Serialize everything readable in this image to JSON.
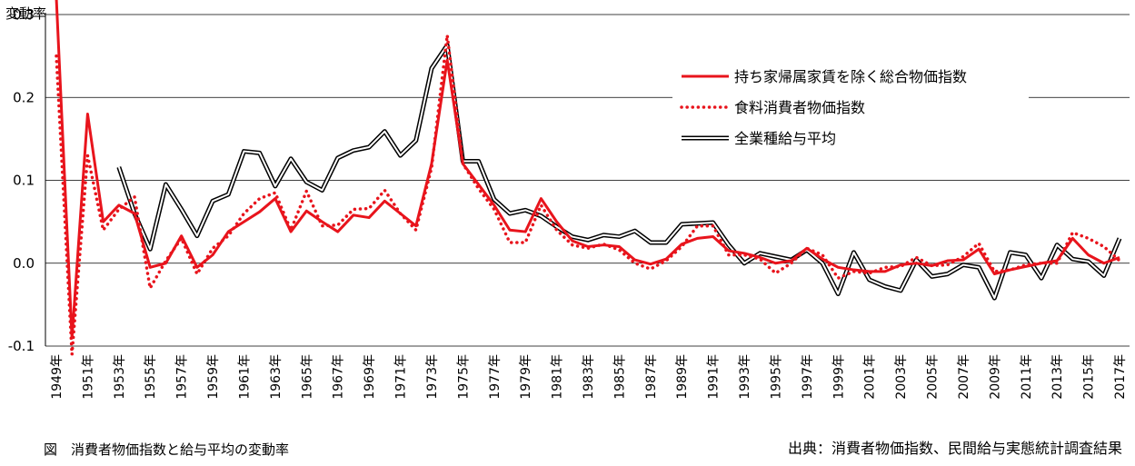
{
  "chart_data": {
    "type": "line",
    "ylabel": "変動率",
    "ylim": [
      -0.1,
      0.3
    ],
    "yticks": [
      "-0.1",
      "0.0",
      "0.1",
      "0.2",
      "0.3"
    ],
    "ytick_values": [
      -0.1,
      0.0,
      0.1,
      0.2,
      0.3
    ],
    "grid": true,
    "legend_position": "top-right",
    "x": [
      1949,
      1950,
      1951,
      1952,
      1953,
      1954,
      1955,
      1956,
      1957,
      1958,
      1959,
      1960,
      1961,
      1962,
      1963,
      1964,
      1965,
      1966,
      1967,
      1968,
      1969,
      1970,
      1971,
      1972,
      1973,
      1974,
      1975,
      1976,
      1977,
      1978,
      1979,
      1980,
      1981,
      1982,
      1983,
      1984,
      1985,
      1986,
      1987,
      1988,
      1989,
      1990,
      1991,
      1992,
      1993,
      1994,
      1995,
      1996,
      1997,
      1998,
      1999,
      2000,
      2001,
      2002,
      2003,
      2004,
      2005,
      2006,
      2007,
      2008,
      2009,
      2010,
      2011,
      2012,
      2013,
      2014,
      2015,
      2016,
      2017
    ],
    "x_tick_labels": [
      "1949年",
      "1951年",
      "1953年",
      "1955年",
      "1957年",
      "1959年",
      "1961年",
      "1963年",
      "1965年",
      "1967年",
      "1969年",
      "1971年",
      "1973年",
      "1975年",
      "1977年",
      "1979年",
      "1981年",
      "1983年",
      "1985年",
      "1987年",
      "1989年",
      "1991年",
      "1993年",
      "1995年",
      "1997年",
      "1999年",
      "2001年",
      "2003年",
      "2005年",
      "2007年",
      "2009年",
      "2011年",
      "2013年",
      "2015年",
      "2017年"
    ],
    "series": [
      {
        "name": "持ち家帰属家賃を除く総合物価指数",
        "color": "#e8141c",
        "style": "solid",
        "values": [
          0.32,
          -0.09,
          0.18,
          0.05,
          0.07,
          0.06,
          -0.005,
          0.0,
          0.033,
          -0.005,
          0.01,
          0.038,
          0.05,
          0.062,
          0.078,
          0.038,
          0.063,
          0.05,
          0.038,
          0.058,
          0.055,
          0.075,
          0.06,
          0.045,
          0.12,
          0.245,
          0.12,
          0.095,
          0.07,
          0.04,
          0.038,
          0.078,
          0.05,
          0.027,
          0.02,
          0.022,
          0.02,
          0.004,
          -0.001,
          0.005,
          0.023,
          0.03,
          0.032,
          0.015,
          0.012,
          0.007,
          0.0,
          0.003,
          0.018,
          0.005,
          -0.005,
          -0.008,
          -0.01,
          -0.01,
          -0.002,
          0.0,
          -0.003,
          0.003,
          0.004,
          0.017,
          -0.013,
          -0.008,
          -0.004,
          0.0,
          0.003,
          0.03,
          0.01,
          0.0,
          0.007
        ]
      },
      {
        "name": "食料消費者物価指数",
        "color": "#e8141c",
        "style": "dotted",
        "values": [
          0.25,
          -0.11,
          0.13,
          0.04,
          0.065,
          0.08,
          -0.03,
          0.003,
          0.03,
          -0.013,
          0.018,
          0.033,
          0.06,
          0.078,
          0.085,
          0.04,
          0.087,
          0.045,
          0.046,
          0.065,
          0.066,
          0.088,
          0.06,
          0.04,
          0.115,
          0.275,
          0.12,
          0.09,
          0.065,
          0.025,
          0.025,
          0.07,
          0.04,
          0.022,
          0.018,
          0.023,
          0.016,
          0.0,
          -0.007,
          0.003,
          0.02,
          0.045,
          0.045,
          0.01,
          0.01,
          0.005,
          -0.012,
          0.0,
          0.018,
          0.01,
          -0.018,
          -0.01,
          -0.012,
          -0.005,
          -0.004,
          0.007,
          -0.003,
          -0.002,
          0.008,
          0.024,
          -0.01,
          -0.008,
          -0.002,
          0.0,
          0.0,
          0.037,
          0.03,
          0.02,
          0.003
        ]
      },
      {
        "name": "全業種給与平均",
        "color": "#000000",
        "style": "double",
        "values": [
          null,
          null,
          null,
          null,
          0.116,
          0.06,
          0.017,
          0.095,
          0.065,
          0.033,
          0.075,
          0.083,
          0.135,
          0.133,
          0.093,
          0.126,
          0.098,
          0.088,
          0.127,
          0.136,
          0.14,
          0.159,
          0.13,
          0.148,
          0.235,
          0.263,
          0.123,
          0.123,
          0.077,
          0.06,
          0.064,
          0.057,
          0.044,
          0.032,
          0.028,
          0.034,
          0.032,
          0.039,
          0.025,
          0.025,
          0.047,
          0.048,
          0.049,
          0.022,
          0.0,
          0.012,
          0.008,
          0.004,
          0.016,
          0.0,
          -0.037,
          0.013,
          -0.02,
          -0.028,
          -0.033,
          0.004,
          -0.016,
          -0.013,
          -0.002,
          -0.005,
          -0.042,
          0.013,
          0.01,
          -0.018,
          0.022,
          0.005,
          0.002,
          -0.015,
          0.03
        ]
      }
    ]
  },
  "caption": "図　消費者物価指数と給与平均の変動率",
  "source": "出典：消費者物価指数、民間給与実態統計調査結果"
}
